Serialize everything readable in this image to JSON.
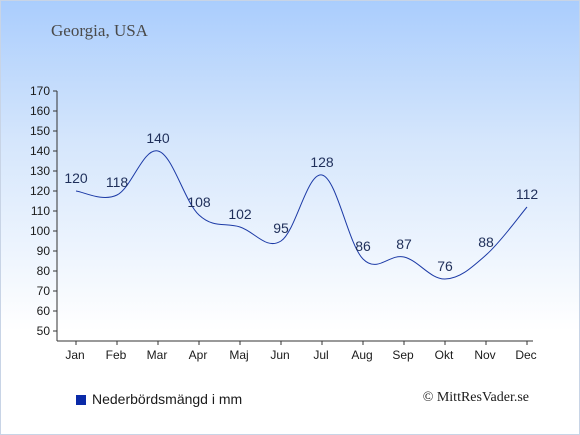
{
  "header": {
    "location": "Georgia, USA"
  },
  "legend": {
    "label": "Nederbördsmängd i mm"
  },
  "credit": {
    "text": "© MittResVader.se"
  },
  "colors": {
    "line": "#1c3aa6",
    "swatch": "#0a2aa8",
    "axis": "#333333"
  },
  "chart_data": {
    "type": "line",
    "categories": [
      "Jan",
      "Feb",
      "Mar",
      "Apr",
      "Maj",
      "Jun",
      "Jul",
      "Aug",
      "Sep",
      "Okt",
      "Nov",
      "Dec"
    ],
    "series": [
      {
        "name": "Nederbördsmängd i mm",
        "values": [
          120,
          118,
          140,
          108,
          102,
          95,
          128,
          86,
          87,
          76,
          88,
          112
        ]
      }
    ],
    "data_labels": [
      "120",
      "118",
      "140",
      "108",
      "102",
      "95",
      "128",
      "86",
      "87",
      "76",
      "88",
      "112"
    ],
    "yticks": [
      50,
      60,
      70,
      80,
      90,
      100,
      110,
      120,
      130,
      140,
      150,
      160,
      170
    ],
    "ylim": [
      45,
      170
    ],
    "title": "",
    "xlabel": "",
    "ylabel": "",
    "grid": false,
    "legend_position": "bottom-left"
  }
}
